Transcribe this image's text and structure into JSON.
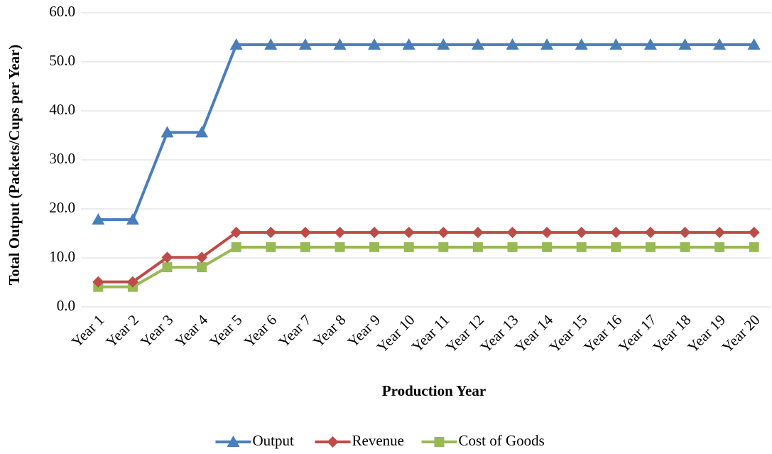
{
  "chart_data": {
    "type": "line",
    "x_label": "Production Year",
    "y_label": "Total Output (Packets/Cups per Year)",
    "categories": [
      "Year 1",
      "Year 2",
      "Year 3",
      "Year 4",
      "Year 5",
      "Year 6",
      "Year 7",
      "Year 8",
      "Year 9",
      "Year 10",
      "Year 11",
      "Year 12",
      "Year 13",
      "Year 14",
      "Year 15",
      "Year 16",
      "Year 17",
      "Year 18",
      "Year 19",
      "Year 20"
    ],
    "series": [
      {
        "name": "Output",
        "color": "#4a7ebb",
        "marker": "triangle",
        "values": [
          17.8,
          17.8,
          35.6,
          35.6,
          53.5,
          53.5,
          53.5,
          53.5,
          53.5,
          53.5,
          53.5,
          53.5,
          53.5,
          53.5,
          53.5,
          53.5,
          53.5,
          53.5,
          53.5,
          53.5
        ]
      },
      {
        "name": "Revenue",
        "color": "#be4b48",
        "marker": "diamond",
        "values": [
          5.1,
          5.1,
          10.1,
          10.1,
          15.2,
          15.2,
          15.2,
          15.2,
          15.2,
          15.2,
          15.2,
          15.2,
          15.2,
          15.2,
          15.2,
          15.2,
          15.2,
          15.2,
          15.2,
          15.2
        ]
      },
      {
        "name": "Cost of Goods",
        "color": "#98b954",
        "marker": "square",
        "values": [
          4.1,
          4.1,
          8.1,
          8.1,
          12.2,
          12.2,
          12.2,
          12.2,
          12.2,
          12.2,
          12.2,
          12.2,
          12.2,
          12.2,
          12.2,
          12.2,
          12.2,
          12.2,
          12.2,
          12.2
        ]
      }
    ],
    "ylim": [
      0,
      60
    ],
    "yticks": [
      {
        "value": 0,
        "label": "0.0"
      },
      {
        "value": 10,
        "label": "10.0"
      },
      {
        "value": 20,
        "label": "20.0"
      },
      {
        "value": 30,
        "label": "30.0"
      },
      {
        "value": 40,
        "label": "40.0"
      },
      {
        "value": 50,
        "label": "50.0"
      },
      {
        "value": 60,
        "label": "60.0"
      }
    ],
    "grid": true,
    "legend": "bottom"
  }
}
